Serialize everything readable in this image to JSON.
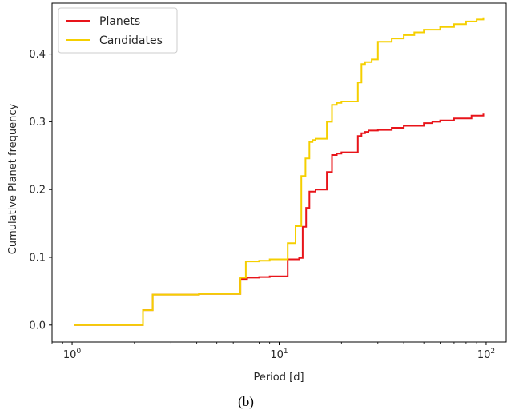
{
  "chart_data": {
    "type": "line",
    "step": true,
    "xscale": "log",
    "xlim": [
      0.8,
      125
    ],
    "ylim": [
      -0.025,
      0.475
    ],
    "xlabel": "Period [d]",
    "ylabel": "Cumulative Planet frequency",
    "caption": "(b)",
    "legend_position": "top-left",
    "grid": false,
    "xticks": [
      {
        "value": 1,
        "base": "10",
        "exp": "0"
      },
      {
        "value": 10,
        "base": "10",
        "exp": "1"
      },
      {
        "value": 100,
        "base": "10",
        "exp": "2"
      }
    ],
    "yticks": [
      {
        "value": 0.0,
        "label": "0.0"
      },
      {
        "value": 0.1,
        "label": "0.1"
      },
      {
        "value": 0.2,
        "label": "0.2"
      },
      {
        "value": 0.3,
        "label": "0.3"
      },
      {
        "value": 0.4,
        "label": "0.4"
      }
    ],
    "series": [
      {
        "name": "Planets",
        "color": "#e8141a",
        "x": [
          1.02,
          2.2,
          2.45,
          4.1,
          6.5,
          6.9,
          7.0,
          8.0,
          9.0,
          11.0,
          12.5,
          13.0,
          13.5,
          14.0,
          15.0,
          17.0,
          18.0,
          19.0,
          20.0,
          24.0,
          25.0,
          26.0,
          27.0,
          30.0,
          35.0,
          40.0,
          50.0,
          55.0,
          60.0,
          70.0,
          85.0,
          97.0
        ],
        "y": [
          0.0,
          0.022,
          0.045,
          0.046,
          0.068,
          0.068,
          0.07,
          0.071,
          0.072,
          0.097,
          0.099,
          0.145,
          0.173,
          0.197,
          0.2,
          0.226,
          0.251,
          0.253,
          0.255,
          0.279,
          0.283,
          0.285,
          0.287,
          0.288,
          0.291,
          0.294,
          0.298,
          0.3,
          0.302,
          0.305,
          0.309,
          0.312
        ]
      },
      {
        "name": "Candidates",
        "color": "#f5cf00",
        "x": [
          1.02,
          2.2,
          2.45,
          4.1,
          6.5,
          6.9,
          8.0,
          9.0,
          11.0,
          12.0,
          12.8,
          13.4,
          14.0,
          14.5,
          15.0,
          17.0,
          18.0,
          19.0,
          20.0,
          24.0,
          25.0,
          26.0,
          28.0,
          30.0,
          35.0,
          40.0,
          45.0,
          50.0,
          60.0,
          70.0,
          80.0,
          90.0,
          97.0
        ],
        "y": [
          0.0,
          0.022,
          0.045,
          0.046,
          0.07,
          0.094,
          0.095,
          0.097,
          0.121,
          0.146,
          0.22,
          0.246,
          0.27,
          0.273,
          0.275,
          0.3,
          0.325,
          0.328,
          0.33,
          0.358,
          0.385,
          0.388,
          0.392,
          0.418,
          0.423,
          0.428,
          0.432,
          0.436,
          0.44,
          0.444,
          0.448,
          0.451,
          0.454
        ]
      }
    ]
  }
}
